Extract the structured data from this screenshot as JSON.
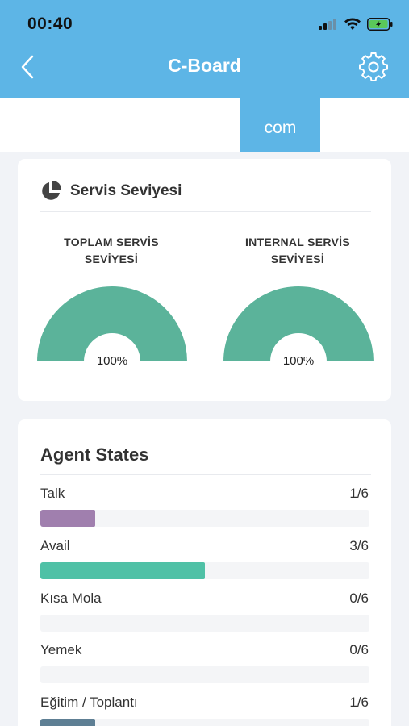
{
  "status_bar": {
    "time": "00:40"
  },
  "nav": {
    "title": "C-Board"
  },
  "tabs": {
    "active_label": "com"
  },
  "service_level": {
    "title": "Servis Seviyesi",
    "gauges": [
      {
        "label_line1": "TOPLAM SERVİS",
        "label_line2": "SEVİYESİ",
        "value_text": "100%",
        "value": 100
      },
      {
        "label_line1": "INTERNAL SERVİS",
        "label_line2": "SEVİYESİ",
        "value_text": "100%",
        "value": 100
      }
    ],
    "gauge_color": "#5bb39a"
  },
  "agent_states": {
    "title": "Agent States",
    "rows": [
      {
        "label": "Talk",
        "count": "1/6",
        "fraction": 0.1667,
        "color": "#a07fae"
      },
      {
        "label": "Avail",
        "count": "3/6",
        "fraction": 0.5,
        "color": "#4fc1a6"
      },
      {
        "label": "Kısa Mola",
        "count": "0/6",
        "fraction": 0,
        "color": "#4fc1a6"
      },
      {
        "label": "Yemek",
        "count": "0/6",
        "fraction": 0,
        "color": "#4fc1a6"
      },
      {
        "label": "Eğitim / Toplantı",
        "count": "1/6",
        "fraction": 0.1667,
        "color": "#5e7f94"
      }
    ]
  },
  "colors": {
    "header": "#5db5e6",
    "background": "#f1f3f7"
  }
}
